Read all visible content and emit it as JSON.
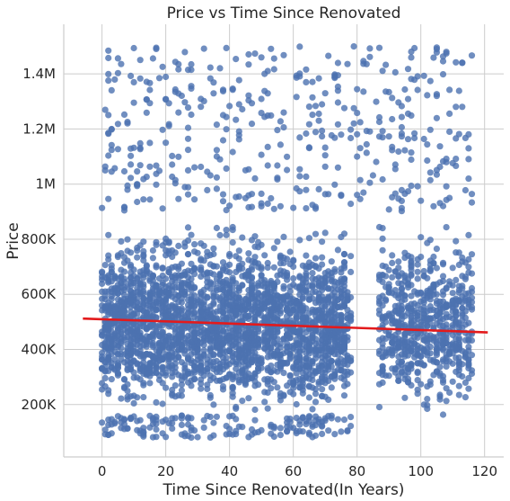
{
  "chart_data": {
    "type": "scatter",
    "title": "Price vs Time Since Renovated",
    "xlabel": "Time Since Renovated(In Years)",
    "ylabel": "Price",
    "xlim": [
      -12,
      126
    ],
    "ylim": [
      10000,
      1580000
    ],
    "x_ticks": [
      0,
      20,
      40,
      60,
      80,
      100,
      120
    ],
    "x_tick_labels": [
      "0",
      "20",
      "40",
      "60",
      "80",
      "100",
      "120"
    ],
    "y_ticks": [
      200000,
      400000,
      600000,
      800000,
      1000000,
      1200000,
      1400000
    ],
    "y_tick_labels": [
      "200K",
      "400K",
      "600K",
      "800K",
      "1M",
      "1.2M",
      "1.4M"
    ],
    "grid": true,
    "point_color": "#4c72b0",
    "regression_line": {
      "color": "#e31a1c",
      "x": [
        -6,
        121
      ],
      "y": [
        512000,
        462000
      ]
    },
    "series": [
      {
        "dense_clusters": [
          {
            "x_range": [
              0,
              78
            ],
            "y_range": [
              150000,
              900000
            ],
            "count": 2600
          },
          {
            "x_range": [
              87,
              116
            ],
            "y_range": [
              150000,
              900000
            ],
            "count": 650
          },
          {
            "x_range": [
              0,
              116
            ],
            "y_range": [
              900000,
              1500000
            ],
            "count": 420
          },
          {
            "x_range": [
              0,
              78
            ],
            "y_range": [
              80000,
              160000
            ],
            "count": 160
          }
        ]
      }
    ]
  }
}
